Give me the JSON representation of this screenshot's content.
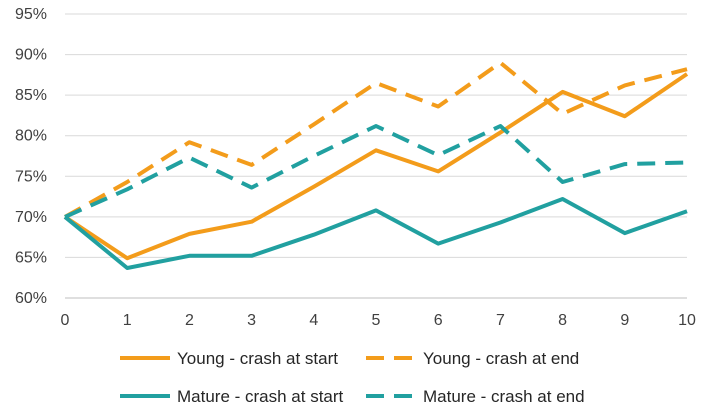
{
  "chart_data": {
    "type": "line",
    "x": [
      0,
      1,
      2,
      3,
      4,
      5,
      6,
      7,
      8,
      9,
      10
    ],
    "ylim": [
      0.6,
      0.95
    ],
    "yticks": [
      "60%",
      "65%",
      "70%",
      "75%",
      "80%",
      "85%",
      "90%",
      "95%"
    ],
    "xticks": [
      "0",
      "1",
      "2",
      "3",
      "4",
      "5",
      "6",
      "7",
      "8",
      "9",
      "10"
    ],
    "grid": "horizontal",
    "legend_position": "bottom",
    "series": [
      {
        "name": "Young - crash at start",
        "color": "#f39c1b",
        "dash": "solid",
        "values": [
          0.7,
          0.649,
          0.679,
          0.694,
          0.737,
          0.782,
          0.756,
          0.804,
          0.854,
          0.824,
          0.876
        ]
      },
      {
        "name": "Young - crash at end",
        "color": "#f39c1b",
        "dash": "dashed",
        "values": [
          0.7,
          0.743,
          0.792,
          0.764,
          0.814,
          0.865,
          0.836,
          0.89,
          0.827,
          0.862,
          0.882
        ]
      },
      {
        "name": "Mature - crash at start",
        "color": "#21a0a0",
        "dash": "solid",
        "values": [
          0.7,
          0.637,
          0.652,
          0.652,
          0.678,
          0.708,
          0.667,
          0.693,
          0.722,
          0.68,
          0.707
        ]
      },
      {
        "name": "Mature - crash at end",
        "color": "#21a0a0",
        "dash": "dashed",
        "values": [
          0.7,
          0.734,
          0.773,
          0.736,
          0.775,
          0.812,
          0.776,
          0.812,
          0.743,
          0.765,
          0.767
        ]
      }
    ]
  }
}
